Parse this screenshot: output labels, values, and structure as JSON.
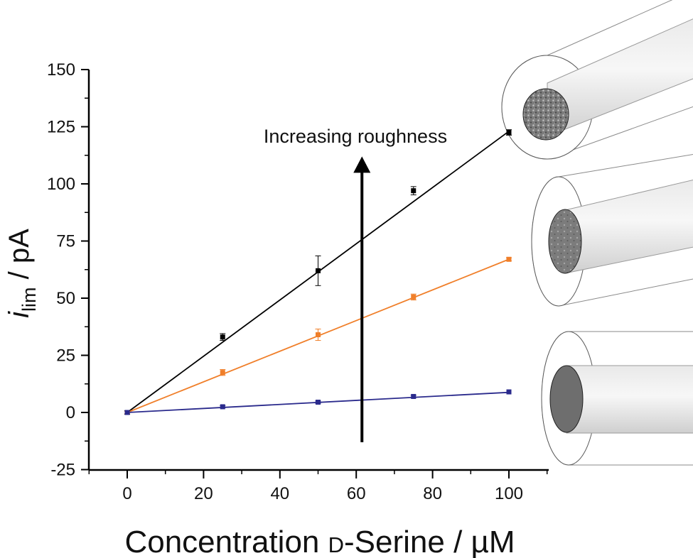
{
  "chart_data": {
    "type": "scatter",
    "annotation": "Increasing roughness",
    "xlabel": {
      "main": "Concentration ",
      "smallcaps": "D",
      "rest": "-Serine / ",
      "unit": "µM"
    },
    "ylabel": {
      "italic": "i",
      "sub": "lim",
      "rest": " / pA"
    },
    "xlim": [
      -10,
      110
    ],
    "ylim": [
      -25,
      150
    ],
    "x_ticks": [
      0,
      20,
      40,
      60,
      80,
      100
    ],
    "x_tick_labels": [
      "0",
      "20",
      "40",
      "60",
      "80",
      "100"
    ],
    "y_ticks": [
      -25,
      0,
      25,
      50,
      75,
      100,
      125,
      150
    ],
    "y_tick_labels": [
      "-25",
      "0",
      "25",
      "50",
      "75",
      "100",
      "125",
      "150"
    ],
    "grid": false,
    "series": [
      {
        "color": "#000000",
        "x": [
          0,
          25,
          50,
          75,
          100
        ],
        "y": [
          0,
          33,
          62,
          97,
          122.5
        ],
        "err": [
          0.8,
          1.5,
          6.5,
          1.8,
          1.2
        ],
        "fit": [
          0,
          1.23
        ]
      },
      {
        "color": "#f07f2a",
        "x": [
          0,
          25,
          50,
          75,
          100
        ],
        "y": [
          0,
          17.5,
          34,
          50.5,
          67
        ],
        "err": [
          0.5,
          1.3,
          2.5,
          1.3,
          0.7
        ],
        "fit": [
          0,
          0.67
        ]
      },
      {
        "color": "#2a2a8c",
        "x": [
          0,
          25,
          50,
          75,
          100
        ],
        "y": [
          0,
          2.5,
          4.5,
          7,
          9
        ],
        "err": [
          0.3,
          0.5,
          0.5,
          0.5,
          0.4
        ],
        "fit": [
          0,
          0.088
        ]
      }
    ],
    "arrow": {
      "x": 61.5,
      "y_from": -13,
      "y_to": 112
    },
    "illustrations": [
      "rough-electrode-illustration",
      "medium-electrode-illustration",
      "smooth-electrode-illustration"
    ]
  }
}
